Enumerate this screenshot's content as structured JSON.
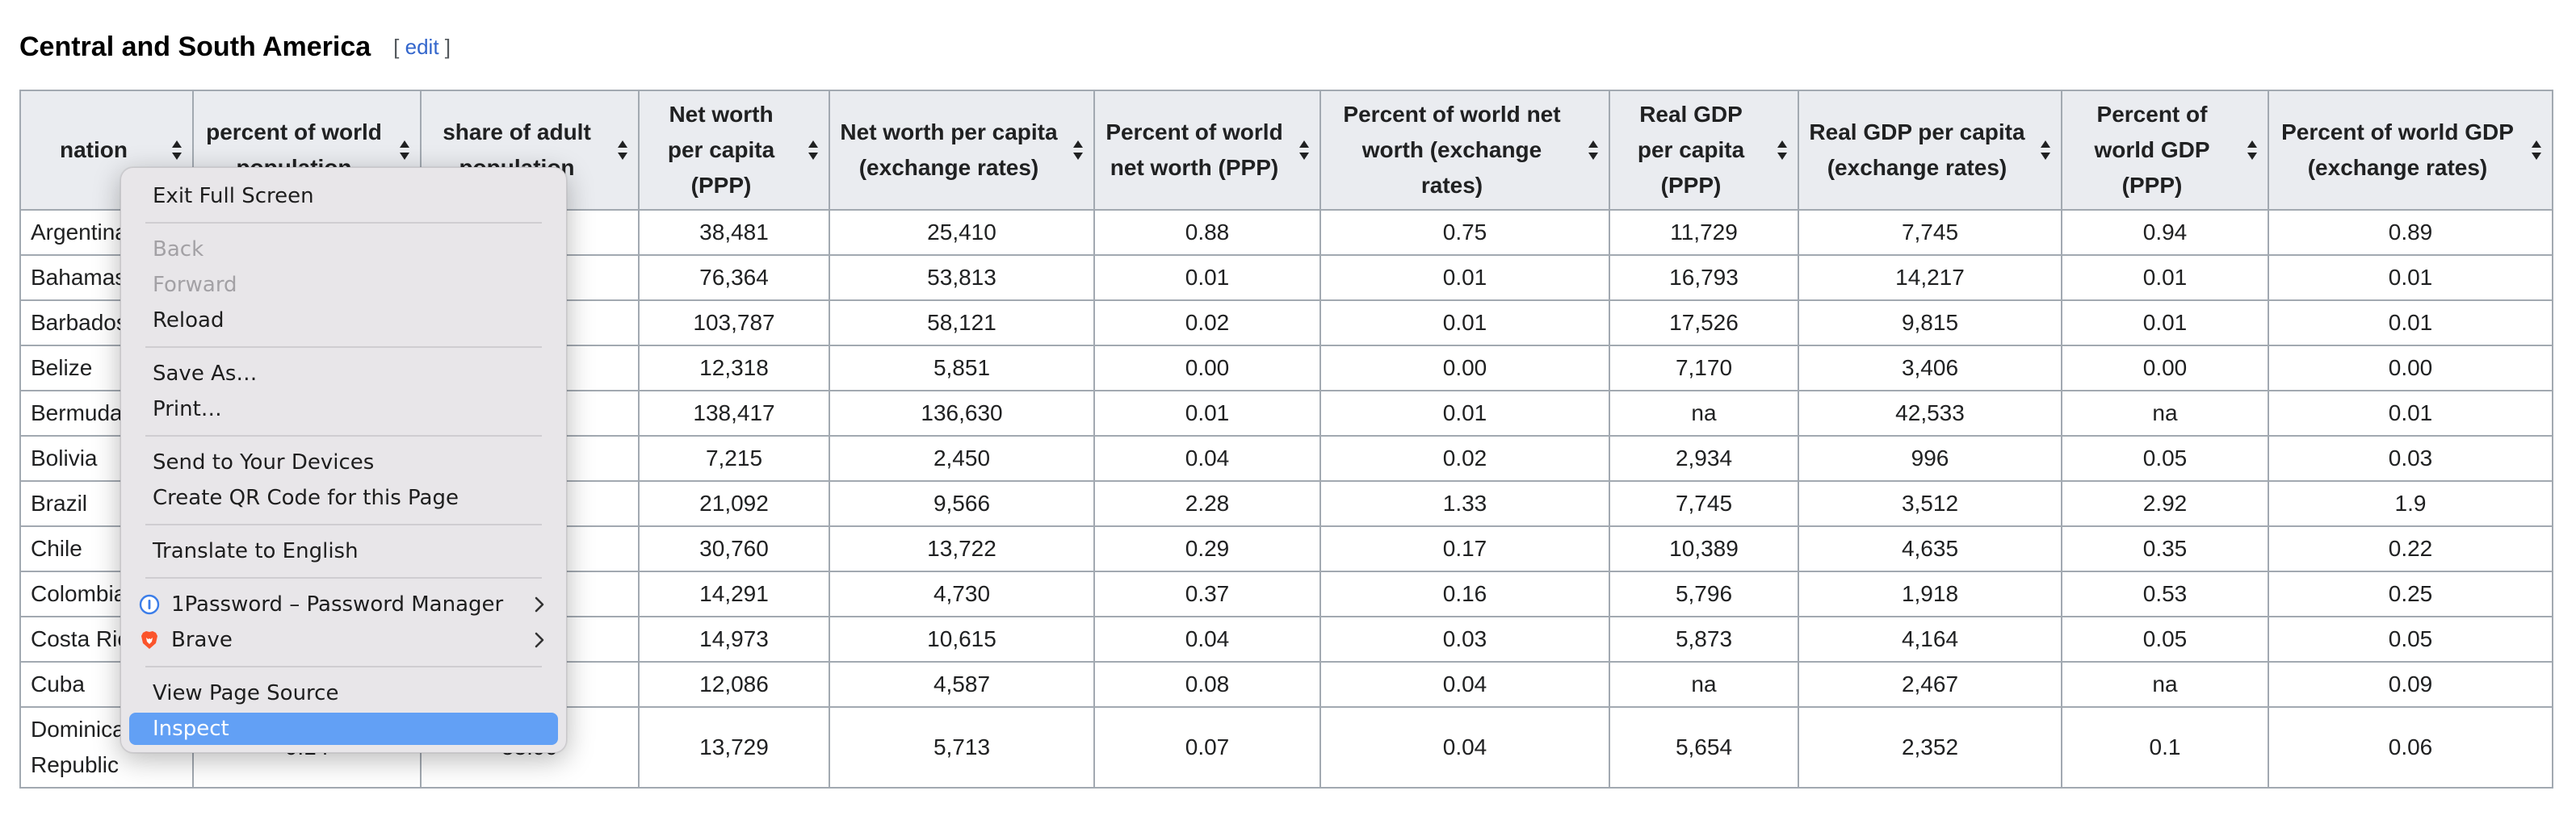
{
  "section": {
    "title": "Central and South America",
    "edit_open": "[",
    "edit_label": "edit",
    "edit_close": "]"
  },
  "table": {
    "headers": [
      "nation",
      "percent of world population",
      "share of adult population",
      "Net worth per capita (PPP)",
      "Net worth per capita (exchange rates)",
      "Percent of world net worth (PPP)",
      "Percent of world net worth (exchange rates)",
      "Real GDP per capita (PPP)",
      "Real GDP per capita (exchange rates)",
      "Percent of world GDP (PPP)",
      "Percent of world GDP (exchange rates)"
    ],
    "rows": [
      [
        "Argentina",
        "",
        "",
        "38,481",
        "25,410",
        "0.88",
        "0.75",
        "11,729",
        "7,745",
        "0.94",
        "0.89"
      ],
      [
        "Bahamas",
        "",
        "",
        "76,364",
        "53,813",
        "0.01",
        "0.01",
        "16,793",
        "14,217",
        "0.01",
        "0.01"
      ],
      [
        "Barbados",
        "",
        "",
        "103,787",
        "58,121",
        "0.02",
        "0.01",
        "17,526",
        "9,815",
        "0.01",
        "0.01"
      ],
      [
        "Belize",
        "",
        "",
        "12,318",
        "5,851",
        "0.00",
        "0.00",
        "7,170",
        "3,406",
        "0.00",
        "0.00"
      ],
      [
        "Bermuda",
        "",
        "",
        "138,417",
        "136,630",
        "0.01",
        "0.01",
        "na",
        "42,533",
        "na",
        "0.01"
      ],
      [
        "Bolivia",
        "",
        "",
        "7,215",
        "2,450",
        "0.04",
        "0.02",
        "2,934",
        "996",
        "0.05",
        "0.03"
      ],
      [
        "Brazil",
        "",
        "",
        "21,092",
        "9,566",
        "2.28",
        "1.33",
        "7,745",
        "3,512",
        "2.92",
        "1.9"
      ],
      [
        "Chile",
        "",
        "",
        "30,760",
        "13,722",
        "0.29",
        "0.17",
        "10,389",
        "4,635",
        "0.35",
        "0.22"
      ],
      [
        "Colombia",
        "",
        "",
        "14,291",
        "4,730",
        "0.37",
        "0.16",
        "5,796",
        "1,918",
        "0.53",
        "0.25"
      ],
      [
        "Costa Rica",
        "",
        "",
        "14,973",
        "10,615",
        "0.04",
        "0.03",
        "5,873",
        "4,164",
        "0.05",
        "0.05"
      ],
      [
        "Cuba",
        "",
        "",
        "12,086",
        "4,587",
        "0.08",
        "0.04",
        "na",
        "2,467",
        "na",
        "0.09"
      ],
      [
        "Dominican Republic",
        "0.14",
        "53.99",
        "13,729",
        "5,713",
        "0.07",
        "0.04",
        "5,654",
        "2,352",
        "0.1",
        "0.06"
      ]
    ]
  },
  "context_menu": {
    "items": [
      {
        "label": "Exit Full Screen",
        "state": "normal"
      },
      {
        "label": "Back",
        "state": "disabled"
      },
      {
        "label": "Forward",
        "state": "disabled"
      },
      {
        "label": "Reload",
        "state": "normal"
      },
      {
        "label": "Save As…",
        "state": "normal"
      },
      {
        "label": "Print…",
        "state": "normal"
      },
      {
        "label": "Send to Your Devices",
        "state": "normal"
      },
      {
        "label": "Create QR Code for this Page",
        "state": "normal"
      },
      {
        "label": "Translate to English",
        "state": "normal"
      },
      {
        "label": "1Password – Password Manager",
        "state": "submenu",
        "icon": "1password-icon"
      },
      {
        "label": "Brave",
        "state": "submenu",
        "icon": "brave-lion-icon"
      },
      {
        "label": "View Page Source",
        "state": "normal"
      },
      {
        "label": "Inspect",
        "state": "selected"
      }
    ]
  },
  "colors": {
    "accent_selected": "#62a0f5",
    "link": "#3366cc",
    "header_bg": "#eaecf0",
    "border": "#a2a9b1",
    "menu_bg": "#e8e6e9"
  }
}
